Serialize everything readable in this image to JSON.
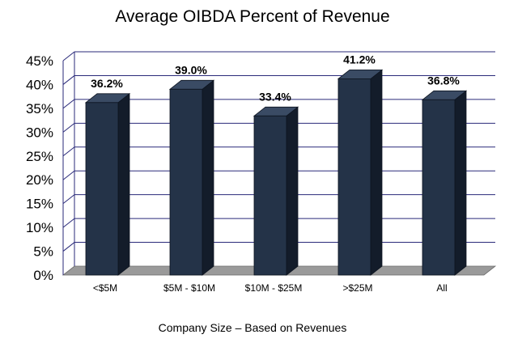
{
  "chart_data": {
    "type": "bar",
    "title": "Average OIBDA Percent of Revenue",
    "xlabel": "Company Size – Based on Revenues",
    "ylabel": "",
    "categories": [
      "<$5M",
      "$5M - $10M",
      "$10M - $25M",
      ">$25M",
      "All"
    ],
    "values": [
      36.2,
      39.0,
      33.4,
      41.2,
      36.8
    ],
    "data_labels": [
      "36.2%",
      "39.0%",
      "33.4%",
      "41.2%",
      "36.8%"
    ],
    "yticks": [
      "0%",
      "5%",
      "10%",
      "15%",
      "20%",
      "25%",
      "30%",
      "35%",
      "40%",
      "45%"
    ],
    "ylim": [
      0,
      45
    ],
    "grid": true,
    "legend": "none",
    "style": "3d-column",
    "colors": {
      "bar_front": "#243348",
      "bar_side": "#131c2a",
      "bar_top": "#3a4b64",
      "grid": "#2a2a7a",
      "floor": "#9a9a9a"
    }
  }
}
